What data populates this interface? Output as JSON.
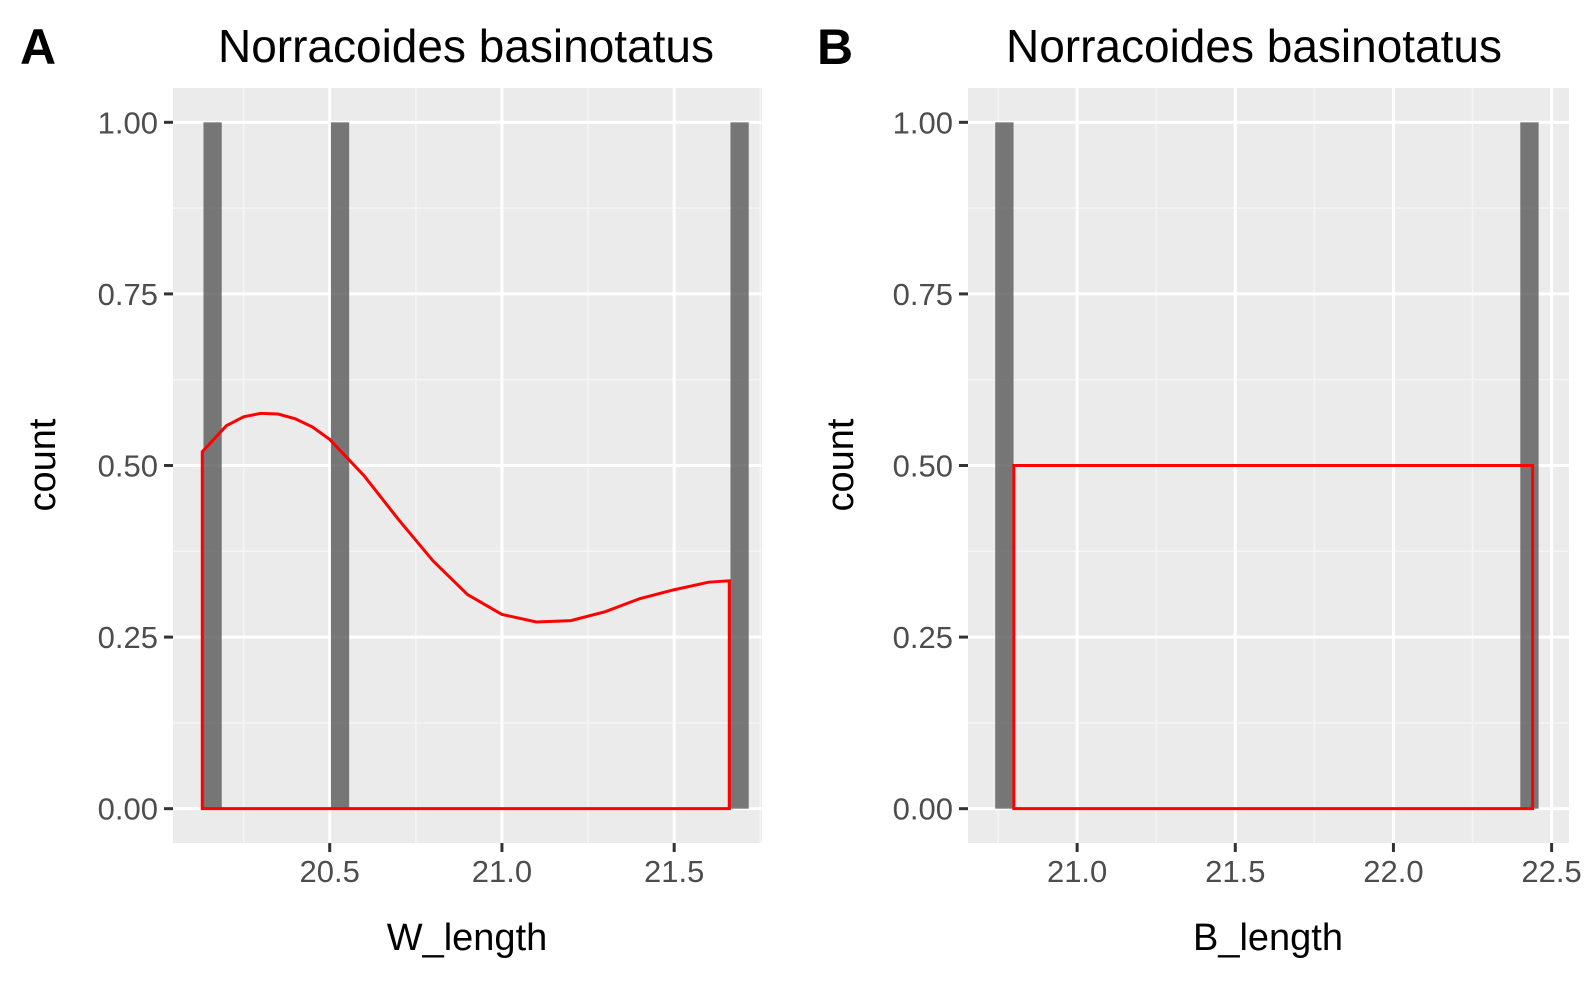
{
  "figure": {
    "background": "#ffffff"
  },
  "style": {
    "panel_bg": "#ebebeb",
    "grid_major": "#ffffff",
    "grid_minor": "#f5f5f5",
    "bar_fill": "#595959",
    "density_line": "#ff0000",
    "tick_color": "#333333"
  },
  "panels": [
    {
      "id": "A",
      "tag": "A",
      "title": "Norracoides basinotatus",
      "chart_data": {
        "type": "histogram",
        "xlabel": "W_length",
        "ylabel": "count",
        "xlim": [
          20.045,
          21.755
        ],
        "ylim": [
          -0.05,
          1.05
        ],
        "x_ticks": [
          20.5,
          21.0,
          21.5
        ],
        "x_tick_labels": [
          "20.5",
          "21.0",
          "21.5"
        ],
        "y_ticks": [
          0,
          0.25,
          0.5,
          0.75,
          1.0
        ],
        "y_tick_labels": [
          "0.00",
          "0.25",
          "0.50",
          "0.75",
          "1.00"
        ],
        "grid": true,
        "bars": [
          {
            "x": 20.16,
            "count": 1
          },
          {
            "x": 20.53,
            "count": 1
          },
          {
            "x": 21.69,
            "count": 1
          }
        ],
        "bar_width": 0.053,
        "density": {
          "x": [
            20.13,
            20.2,
            20.25,
            20.3,
            20.35,
            20.4,
            20.45,
            20.5,
            20.6,
            20.7,
            20.8,
            20.9,
            21.0,
            21.1,
            21.2,
            21.3,
            21.4,
            21.5,
            21.6,
            21.66
          ],
          "y": [
            0.52,
            0.558,
            0.571,
            0.576,
            0.575,
            0.568,
            0.556,
            0.538,
            0.485,
            0.421,
            0.361,
            0.312,
            0.283,
            0.272,
            0.274,
            0.287,
            0.306,
            0.319,
            0.33,
            0.332
          ]
        }
      }
    },
    {
      "id": "B",
      "tag": "B",
      "title": "Norracoides basinotatus",
      "chart_data": {
        "type": "histogram",
        "xlabel": "B_length",
        "ylabel": "count",
        "xlim": [
          20.655,
          22.555
        ],
        "ylim": [
          -0.05,
          1.05
        ],
        "x_ticks": [
          21.0,
          21.5,
          22.0,
          22.5
        ],
        "x_tick_labels": [
          "21.0",
          "21.5",
          "22.0",
          "22.5"
        ],
        "y_ticks": [
          0,
          0.25,
          0.5,
          0.75,
          1.0
        ],
        "y_tick_labels": [
          "0.00",
          "0.25",
          "0.50",
          "0.75",
          "1.00"
        ],
        "grid": true,
        "bars": [
          {
            "x": 20.77,
            "count": 1
          },
          {
            "x": 22.43,
            "count": 1
          }
        ],
        "bar_width": 0.058,
        "density": {
          "x": [
            20.8,
            22.44
          ],
          "y": [
            0.5,
            0.5
          ]
        }
      }
    }
  ]
}
